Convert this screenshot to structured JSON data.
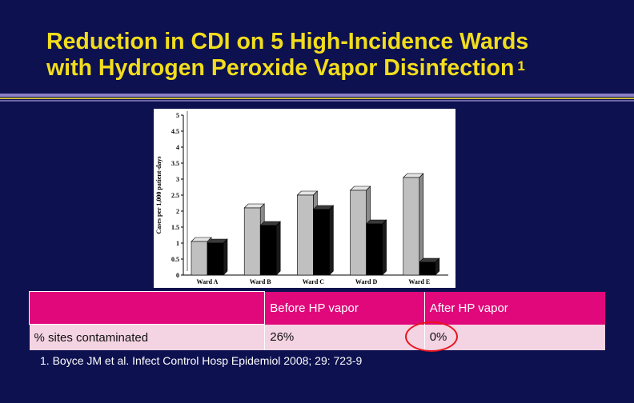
{
  "slide": {
    "title_line1": "Reduction in CDI on 5 High-Incidence Wards",
    "title_line2": "with Hydrogen Peroxide Vapor Disinfection",
    "title_superscript": "1",
    "citation": "1. Boyce JM et al. Infect Control Hosp Epidemiol 2008; 29: 723-9",
    "colors": {
      "background": "#0d1150",
      "title": "#f2dd1c",
      "table_header": "#e0087a",
      "table_row": "#f4d3e2",
      "highlight_circle": "#e8131e"
    }
  },
  "chart_data": {
    "type": "bar",
    "categories": [
      "Ward A",
      "Ward B",
      "Ward C",
      "Ward D",
      "Ward E"
    ],
    "series": [
      {
        "values": [
          1.05,
          2.1,
          2.5,
          2.65,
          3.05
        ],
        "color": "#c0c0c0"
      },
      {
        "values": [
          1.0,
          1.55,
          2.05,
          1.6,
          0.4
        ],
        "color": "#000000"
      }
    ],
    "ylabel": "Cases per 1,000 patient-days",
    "ylim": [
      0,
      5
    ],
    "yticks": [
      "0",
      "0.5",
      "1",
      "1.5",
      "2",
      "2.5",
      "3",
      "3.5",
      "4",
      "4.5",
      "5"
    ],
    "grid": false,
    "style": "3d-bar"
  },
  "table": {
    "headers": [
      "",
      "Before HP vapor",
      "After HP vapor"
    ],
    "rows": [
      [
        "% sites contaminated",
        "26%",
        "0%"
      ]
    ]
  }
}
